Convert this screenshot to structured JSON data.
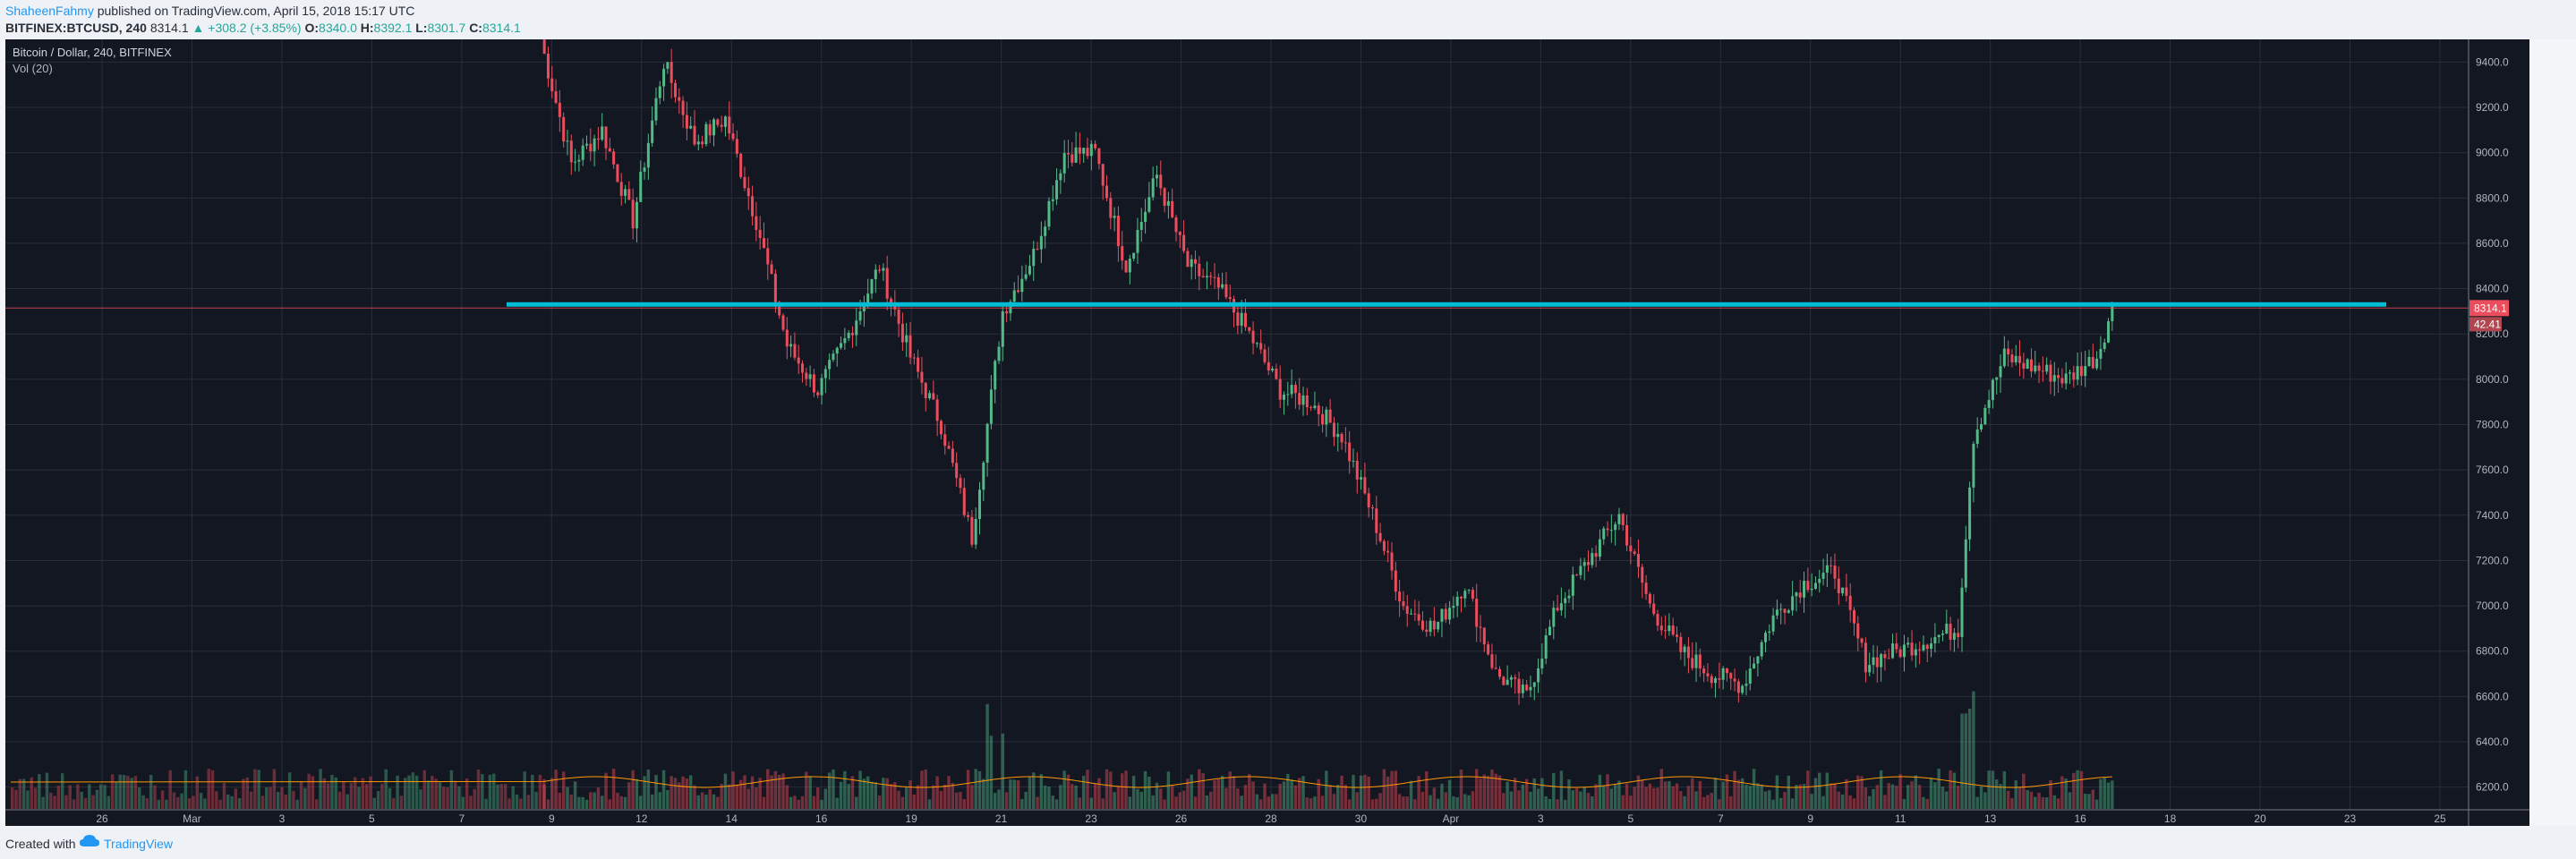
{
  "header": {
    "author": "ShaheenFahmy",
    "published_text": " published on TradingView.com, April 15, 2018 15:17 UTC",
    "symbol_line": "BITFINEX:BTCUSD, 240",
    "last": "8314.1",
    "change": "▲ +308.2 (+3.85%)",
    "o_label": "O:",
    "o_val": "8340.0",
    "h_label": "H:",
    "h_val": "8392.1",
    "l_label": "L:",
    "l_val": "8301.7",
    "c_label": "C:",
    "c_val": "8314.1"
  },
  "legend": {
    "title": "Bitcoin / Dollar, 240, BITFINEX",
    "volume": "Vol (20)"
  },
  "footer": {
    "created": "Created with",
    "brand": "TradingView"
  },
  "colors": {
    "up": "#26a69a",
    "down": "#ef5350",
    "up_candle": "#53b987",
    "down_candle": "#eb4d5c",
    "hline": "#00bcd4",
    "ma": "#ff9800",
    "bg": "#131722",
    "grid": "#2a2e39"
  },
  "chart_data": {
    "type": "candlestick",
    "title": "Bitcoin / Dollar, 240, BITFINEX",
    "ylim": [
      6100,
      9500
    ],
    "y_ticks": [
      "6200.0",
      "6400.0",
      "6600.0",
      "6800.0",
      "7000.0",
      "7200.0",
      "7400.0",
      "7600.0",
      "7800.0",
      "8000.0",
      "8200.0",
      "8400.0",
      "8600.0",
      "8800.0",
      "9000.0",
      "9200.0",
      "9400.0"
    ],
    "x_ticks": [
      "26",
      "Mar",
      "3",
      "5",
      "7",
      "9",
      "12",
      "14",
      "16",
      "19",
      "21",
      "23",
      "26",
      "28",
      "30",
      "Apr",
      "3",
      "5",
      "7",
      "9",
      "11",
      "13",
      "16",
      "18",
      "20",
      "23",
      "25"
    ],
    "horizontal_line": 8330,
    "last_price_label": "8314.1",
    "volume_label": "42.41",
    "series": {
      "close_path_keypoints": [
        [
          0,
          9500
        ],
        [
          2,
          8950
        ],
        [
          4,
          9100
        ],
        [
          6,
          8700
        ],
        [
          8,
          9400
        ],
        [
          10,
          9050
        ],
        [
          12,
          9150
        ],
        [
          14,
          8700
        ],
        [
          16,
          8150
        ],
        [
          18,
          7950
        ],
        [
          20,
          8200
        ],
        [
          22,
          8500
        ],
        [
          24,
          8100
        ],
        [
          26,
          7800
        ],
        [
          28,
          7300
        ],
        [
          30,
          8300
        ],
        [
          32,
          8550
        ],
        [
          34,
          9000
        ],
        [
          36,
          9000
        ],
        [
          38,
          8500
        ],
        [
          40,
          8900
        ],
        [
          42,
          8500
        ],
        [
          44,
          8400
        ],
        [
          46,
          8200
        ],
        [
          48,
          7950
        ],
        [
          50,
          7900
        ],
        [
          52,
          7750
        ],
        [
          54,
          7400
        ],
        [
          56,
          7000
        ],
        [
          58,
          6900
        ],
        [
          60,
          7100
        ],
        [
          62,
          6700
        ],
        [
          64,
          6600
        ],
        [
          66,
          7000
        ],
        [
          68,
          7200
        ],
        [
          70,
          7400
        ],
        [
          72,
          7000
        ],
        [
          74,
          6800
        ],
        [
          76,
          6700
        ],
        [
          78,
          6650
        ],
        [
          80,
          6950
        ],
        [
          82,
          7100
        ],
        [
          84,
          7150
        ],
        [
          86,
          6750
        ],
        [
          88,
          6800
        ],
        [
          90,
          6850
        ],
        [
          92,
          6900
        ],
        [
          93,
          7750
        ],
        [
          95,
          8100
        ],
        [
          97,
          8050
        ],
        [
          99,
          8000
        ],
        [
          101,
          8100
        ],
        [
          102,
          8314
        ]
      ]
    }
  }
}
